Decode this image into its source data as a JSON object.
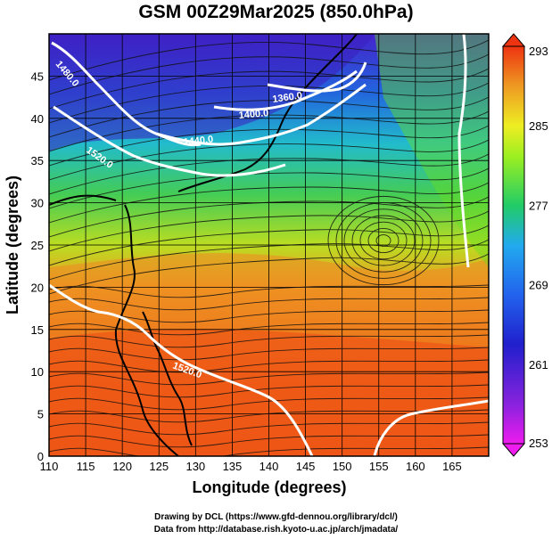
{
  "title": "GSM 00Z29Mar2025 (850.0hPa)",
  "x_axis_label": "Longitude (degrees)",
  "y_axis_label": "Latitude  (degrees)",
  "x_ticks": [
    "110",
    "115",
    "120",
    "125",
    "130",
    "135",
    "140",
    "145",
    "150",
    "155",
    "160",
    "165"
  ],
  "y_ticks": [
    "0",
    "5",
    "10",
    "15",
    "20",
    "25",
    "30",
    "35",
    "40",
    "45"
  ],
  "colorbar_ticks": [
    "293",
    "285",
    "277",
    "269",
    "261",
    "253"
  ],
  "contour_labels": [
    "1480.0",
    "1360.0",
    "1400.0",
    "1440.0",
    "1520.0",
    "1520.0"
  ],
  "credit_line_1": "Drawing by DCL (https://www.gfd-dennou.org/library/dcl/)",
  "credit_line_2": "Data from http://database.rish.kyoto-u.ac.jp/arch/jmadata/",
  "chart_data": {
    "type": "map",
    "x_range": [
      110,
      170
    ],
    "y_range": [
      0,
      50
    ],
    "colorbar_range": [
      253,
      293
    ],
    "colorbar_colors": [
      "#ee1cee",
      "#2020cc",
      "#22aaee",
      "#22cc66",
      "#88ee22",
      "#eeee22",
      "#ee9922",
      "#ee3311"
    ]
  }
}
